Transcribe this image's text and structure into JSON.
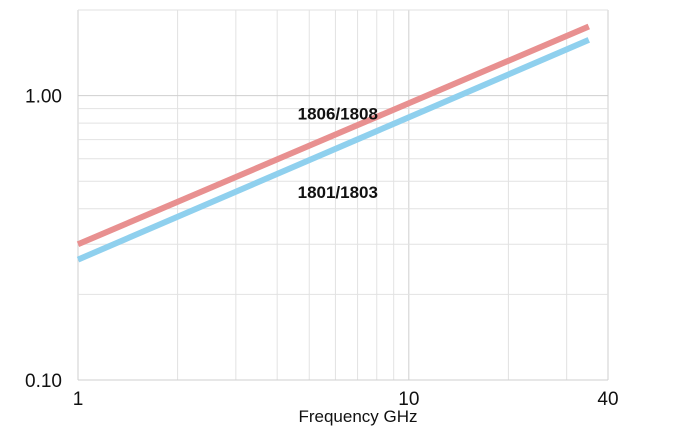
{
  "chart_data": {
    "type": "line",
    "title": "",
    "xlabel": "Frequency GHz",
    "ylabel": "",
    "x_scale": "log",
    "y_scale": "log",
    "xlim": [
      1,
      40
    ],
    "ylim": [
      0.1,
      2
    ],
    "grid": true,
    "x_ticks": [
      {
        "value": 1,
        "label": "1"
      },
      {
        "value": 10,
        "label": "10"
      },
      {
        "value": 40,
        "label": "40"
      }
    ],
    "y_ticks": [
      {
        "value": 0.1,
        "label": "0.10"
      },
      {
        "value": 1.0,
        "label": "1.00"
      }
    ],
    "series": [
      {
        "name": "1806/1808",
        "color": "#e89090",
        "x": [
          1,
          35
        ],
        "y": [
          0.3,
          1.75
        ]
      },
      {
        "name": "1801/1803",
        "color": "#8fd0ee",
        "x": [
          1,
          35
        ],
        "y": [
          0.265,
          1.57
        ]
      }
    ]
  }
}
